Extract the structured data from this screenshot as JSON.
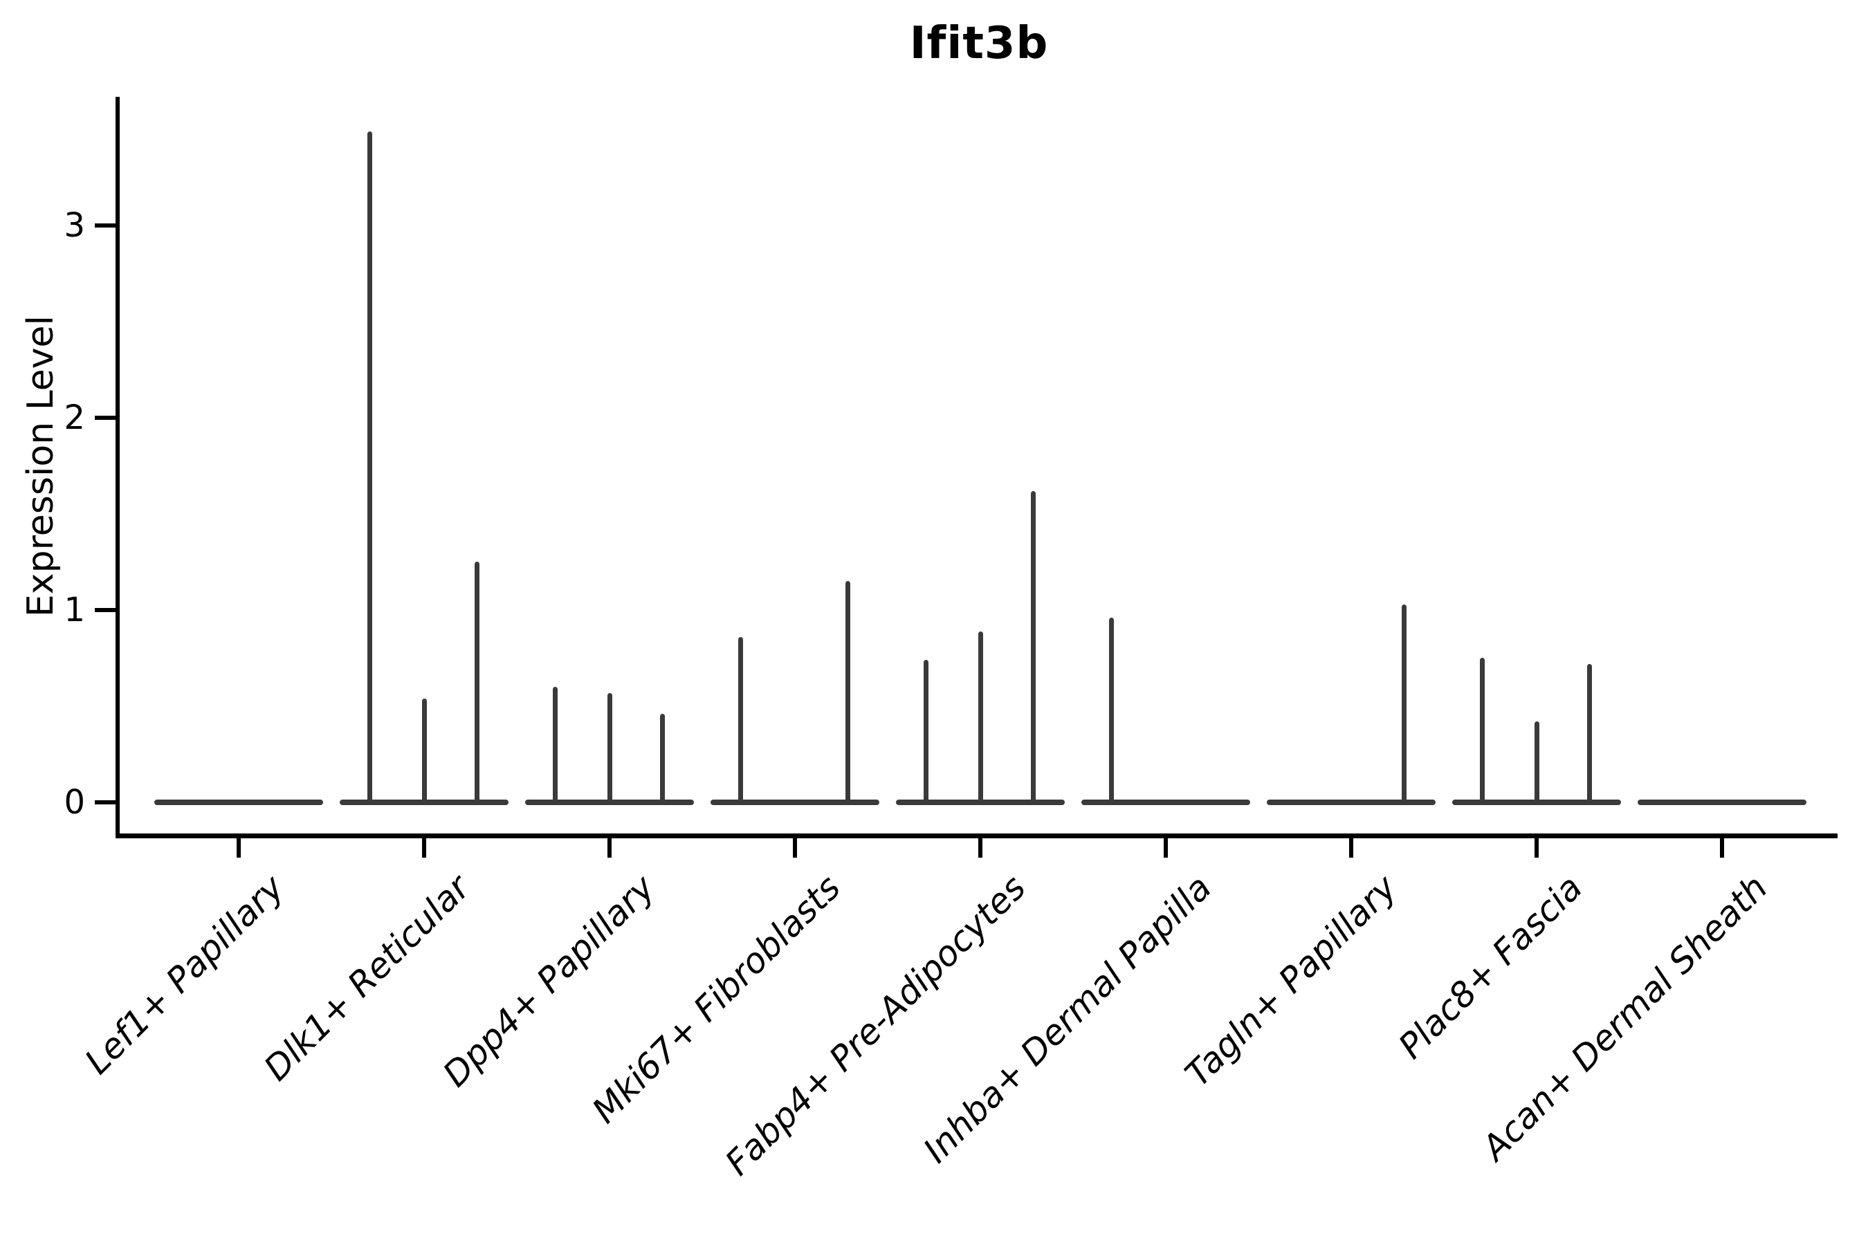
{
  "chart_data": {
    "type": "violin",
    "title": "Ifit3b",
    "ylabel": "Expression Level",
    "xlabel": "",
    "yticks": [
      0,
      1,
      2,
      3
    ],
    "ylim": [
      -0.17,
      3.67
    ],
    "grid": false,
    "legend_position": "none",
    "description": "Stacked-violin style expression plot; each cell-type group shows a flat zero-density baseline with thin vertical density spikes reaching the maximum expression of the few expressing sub-violins",
    "categories": [
      {
        "label": "Lef1+ Papillary",
        "spikes": []
      },
      {
        "label": "Dlk1+ Reticular",
        "spikes": [
          {
            "pos": "left",
            "max": 3.49
          },
          {
            "pos": "center",
            "max": 0.54
          },
          {
            "pos": "right",
            "max": 1.25
          }
        ]
      },
      {
        "label": "Dpp4+ Papillary",
        "spikes": [
          {
            "pos": "left",
            "max": 0.6
          },
          {
            "pos": "center",
            "max": 0.57
          },
          {
            "pos": "right",
            "max": 0.46
          }
        ]
      },
      {
        "label": "Mki67+ Fibroblasts",
        "spikes": [
          {
            "pos": "left",
            "max": 0.86
          },
          {
            "pos": "right",
            "max": 1.15
          }
        ]
      },
      {
        "label": "Fabp4+ Pre-Adipocytes",
        "spikes": [
          {
            "pos": "left",
            "max": 0.74
          },
          {
            "pos": "center",
            "max": 0.89
          },
          {
            "pos": "right",
            "max": 1.62
          }
        ]
      },
      {
        "label": "Inhba+ Dermal Papilla",
        "spikes": [
          {
            "pos": "left",
            "max": 0.96
          }
        ]
      },
      {
        "label": "Tagln+ Papillary",
        "spikes": [
          {
            "pos": "right",
            "max": 1.03
          }
        ]
      },
      {
        "label": "Plac8+ Fascia",
        "spikes": [
          {
            "pos": "left",
            "max": 0.75
          },
          {
            "pos": "center",
            "max": 0.42
          },
          {
            "pos": "right",
            "max": 0.72
          }
        ]
      },
      {
        "label": "Acan+ Dermal Sheath",
        "spikes": []
      }
    ],
    "colors": {
      "axis": "#000000",
      "text": "#000000",
      "violin": "#3a3a3a",
      "background": "#ffffff"
    }
  }
}
